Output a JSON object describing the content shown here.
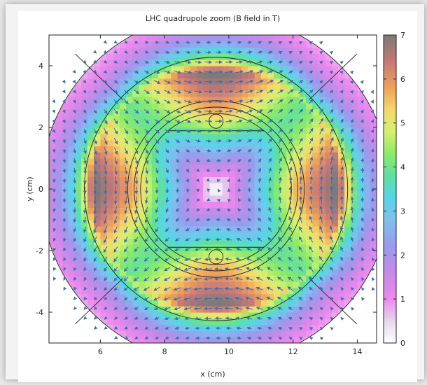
{
  "chart_data": {
    "type": "heatmap",
    "title": "LHC quadrupole zoom (B field in T)",
    "xlabel": "x (cm)",
    "ylabel": "y (cm)",
    "xlim": [
      4.4,
      14.6
    ],
    "ylim": [
      -5,
      5
    ],
    "x_ticks": [
      6,
      8,
      10,
      12,
      14
    ],
    "y_ticks": [
      -4,
      -2,
      0,
      2,
      4
    ],
    "colorbar": {
      "min": 0,
      "max": 7,
      "ticks": [
        0,
        1,
        2,
        3,
        4,
        5,
        6,
        7
      ],
      "stops": [
        {
          "value": 0.0,
          "color": "#ffffff"
        },
        {
          "value": 0.5,
          "color": "#e4d9ec"
        },
        {
          "value": 1.0,
          "color": "#ee88ee"
        },
        {
          "value": 1.6,
          "color": "#c48ae8"
        },
        {
          "value": 2.2,
          "color": "#9a9aee"
        },
        {
          "value": 2.8,
          "color": "#7fc0ee"
        },
        {
          "value": 3.3,
          "color": "#55d6e8"
        },
        {
          "value": 3.8,
          "color": "#5fe0a0"
        },
        {
          "value": 4.3,
          "color": "#8ceb68"
        },
        {
          "value": 4.8,
          "color": "#d6f070"
        },
        {
          "value": 5.3,
          "color": "#f4d86a"
        },
        {
          "value": 5.8,
          "color": "#f0a25a"
        },
        {
          "value": 6.4,
          "color": "#c87878"
        },
        {
          "value": 7.0,
          "color": "#7a7a7a"
        }
      ]
    },
    "field_model": {
      "center": [
        9.6,
        0
      ],
      "gradient_T_per_cm": 1.9,
      "outer_decay_radius_cm": 3.9,
      "series": "B field magnitude (T)"
    },
    "arrow_color": "#3f6fa8",
    "contour_color": "#222222"
  }
}
